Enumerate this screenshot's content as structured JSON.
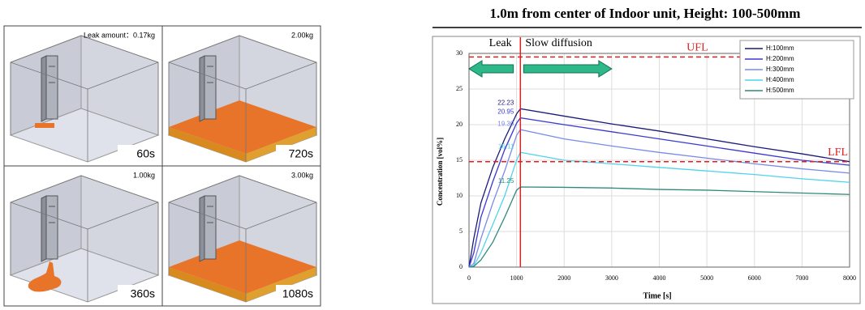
{
  "panels": [
    {
      "amount": "Leak amount：0.17kg",
      "time": "60s"
    },
    {
      "amount": "2.00kg",
      "time": "720s"
    },
    {
      "amount": "1.00kg",
      "time": "360s"
    },
    {
      "amount": "3.00kg",
      "time": "1080s"
    }
  ],
  "chart_data": {
    "type": "line",
    "title": "1.0m from center of Indoor unit, Height: 100-500mm",
    "x_label": "Time [s]",
    "y_label": "Concentration [vol%]",
    "xlim": [
      0,
      8000
    ],
    "xticks": [
      0,
      1000,
      2000,
      3000,
      4000,
      5000,
      6000,
      7000,
      8000
    ],
    "ylim": [
      0,
      30
    ],
    "yticks": [
      0,
      5,
      10,
      15,
      20,
      25,
      30
    ],
    "grid": true,
    "legend": "top-right",
    "x": [
      0,
      100,
      250,
      500,
      750,
      1000,
      1080,
      2000,
      3000,
      4000,
      5000,
      6000,
      7000,
      8000
    ],
    "series": [
      {
        "name": "H:100mm",
        "color": "#1a1a7a",
        "values": [
          0,
          4,
          9,
          14,
          18,
          21.5,
          22.23,
          21.2,
          20.1,
          19.1,
          18,
          16.9,
          15.9,
          14.8
        ],
        "value_labels": [
          null,
          null,
          null,
          null,
          null,
          null,
          "22.23",
          null,
          null,
          null,
          null,
          null,
          null,
          null
        ]
      },
      {
        "name": "H:200mm",
        "color": "#3a3ad0",
        "values": [
          0,
          2,
          7,
          12,
          16.5,
          20.2,
          20.95,
          20,
          19,
          18,
          17,
          16,
          15,
          14.3
        ],
        "value_labels": [
          null,
          null,
          null,
          null,
          null,
          null,
          "20.95",
          null,
          null,
          null,
          null,
          null,
          null,
          null
        ]
      },
      {
        "name": "H:300mm",
        "color": "#7a8ae8",
        "values": [
          0,
          0.5,
          4,
          9,
          13.5,
          18.5,
          19.3,
          18,
          17,
          16.1,
          15.3,
          14.5,
          13.8,
          13.2
        ],
        "value_labels": [
          null,
          null,
          null,
          null,
          null,
          null,
          "19.30",
          null,
          null,
          null,
          null,
          null,
          null,
          null
        ]
      },
      {
        "name": "H:400mm",
        "color": "#4fd4ec",
        "values": [
          0,
          0.2,
          2,
          6,
          10,
          15,
          16.11,
          15,
          14.5,
          14,
          13.5,
          13,
          12.4,
          11.9
        ],
        "value_labels": [
          null,
          null,
          null,
          null,
          null,
          null,
          "16.11",
          null,
          null,
          null,
          null,
          null,
          null,
          null
        ]
      },
      {
        "name": "H:500mm",
        "color": "#2e8a7a",
        "values": [
          0,
          0.1,
          1,
          3.5,
          7,
          10.8,
          11.25,
          11.2,
          11.1,
          10.9,
          10.8,
          10.6,
          10.4,
          10.2
        ],
        "value_labels": [
          null,
          null,
          null,
          null,
          null,
          null,
          "11.25",
          null,
          null,
          null,
          null,
          null,
          null,
          null
        ]
      }
    ],
    "hlines": [
      {
        "value": 29.5,
        "label": "UFL"
      },
      {
        "value": 14.8,
        "label": "LFL"
      }
    ],
    "vline": 1080,
    "arrows": [
      {
        "label": "Leak",
        "from": 1000,
        "to": 0
      },
      {
        "label": "Slow diffusion",
        "from": 1080,
        "to": 3000
      }
    ]
  }
}
